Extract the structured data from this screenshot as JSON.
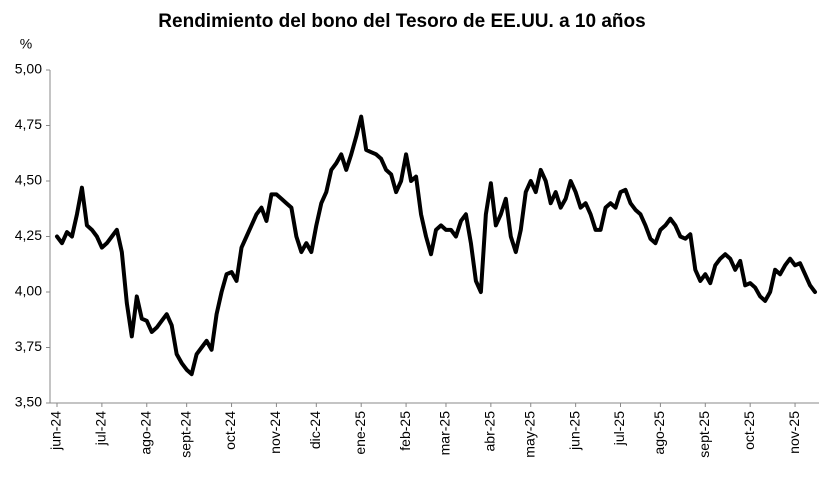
{
  "chart_data": {
    "type": "line",
    "title": "Rendimiento del bono del Tesoro de EE.UU. a 10 años",
    "y_label": "%",
    "color": "#000000",
    "ylim": [
      3.5,
      5.0
    ],
    "yticks": [
      {
        "value": 3.5,
        "label": "3,50"
      },
      {
        "value": 3.75,
        "label": "3,75"
      },
      {
        "value": 4.0,
        "label": "4,00"
      },
      {
        "value": 4.25,
        "label": "4,25"
      },
      {
        "value": 4.5,
        "label": "4,50"
      },
      {
        "value": 4.75,
        "label": "4,75"
      },
      {
        "value": 5.0,
        "label": "5,00"
      }
    ],
    "grid": false,
    "categories": [
      "jun-24",
      null,
      null,
      null,
      null,
      null,
      null,
      null,
      null,
      "jul-24",
      null,
      null,
      null,
      null,
      null,
      null,
      null,
      null,
      "ago-24",
      null,
      null,
      null,
      null,
      null,
      null,
      null,
      "sept-24",
      null,
      null,
      null,
      null,
      null,
      null,
      null,
      null,
      "oct-24",
      null,
      null,
      null,
      null,
      null,
      null,
      null,
      null,
      "nov-24",
      null,
      null,
      null,
      null,
      null,
      null,
      null,
      "dic-24",
      null,
      null,
      null,
      null,
      null,
      null,
      null,
      null,
      "ene-25",
      null,
      null,
      null,
      null,
      null,
      null,
      null,
      null,
      "feb-25",
      null,
      null,
      null,
      null,
      null,
      null,
      null,
      "mar-25",
      null,
      null,
      null,
      null,
      null,
      null,
      null,
      null,
      "abr-25",
      null,
      null,
      null,
      null,
      null,
      null,
      null,
      "may-25",
      null,
      null,
      null,
      null,
      null,
      null,
      null,
      null,
      "jun-25",
      null,
      null,
      null,
      null,
      null,
      null,
      null,
      null,
      "jul-25",
      null,
      null,
      null,
      null,
      null,
      null,
      null,
      "ago-25",
      null,
      null,
      null,
      null,
      null,
      null,
      null,
      null,
      "sept-25",
      null,
      null,
      null,
      null,
      null,
      null,
      null,
      null,
      "oct-25",
      null,
      null,
      null,
      null,
      null,
      null,
      null,
      null,
      "nov-25",
      null,
      null,
      null,
      null
    ],
    "values": [
      4.25,
      4.22,
      4.27,
      4.25,
      4.35,
      4.47,
      4.3,
      4.28,
      4.25,
      4.2,
      4.22,
      4.25,
      4.28,
      4.18,
      3.95,
      3.8,
      3.98,
      3.88,
      3.87,
      3.82,
      3.84,
      3.87,
      3.9,
      3.85,
      3.72,
      3.68,
      3.65,
      3.63,
      3.72,
      3.75,
      3.78,
      3.74,
      3.9,
      4.0,
      4.08,
      4.09,
      4.05,
      4.2,
      4.25,
      4.3,
      4.35,
      4.38,
      4.32,
      4.44,
      4.44,
      4.42,
      4.4,
      4.38,
      4.25,
      4.18,
      4.22,
      4.18,
      4.3,
      4.4,
      4.45,
      4.55,
      4.58,
      4.62,
      4.55,
      4.62,
      4.7,
      4.79,
      4.64,
      4.63,
      4.62,
      4.6,
      4.55,
      4.53,
      4.45,
      4.5,
      4.62,
      4.5,
      4.52,
      4.35,
      4.25,
      4.17,
      4.28,
      4.3,
      4.28,
      4.28,
      4.25,
      4.32,
      4.35,
      4.22,
      4.05,
      4.0,
      4.35,
      4.49,
      4.3,
      4.35,
      4.42,
      4.25,
      4.18,
      4.28,
      4.45,
      4.5,
      4.45,
      4.55,
      4.5,
      4.4,
      4.45,
      4.38,
      4.42,
      4.5,
      4.45,
      4.38,
      4.4,
      4.35,
      4.28,
      4.28,
      4.38,
      4.4,
      4.38,
      4.45,
      4.46,
      4.4,
      4.37,
      4.35,
      4.3,
      4.24,
      4.22,
      4.28,
      4.3,
      4.33,
      4.3,
      4.25,
      4.24,
      4.26,
      4.1,
      4.05,
      4.08,
      4.04,
      4.12,
      4.15,
      4.17,
      4.15,
      4.1,
      4.14,
      4.03,
      4.04,
      4.02,
      3.98,
      3.96,
      4.0,
      4.1,
      4.08,
      4.12,
      4.15,
      4.12,
      4.13,
      4.08,
      4.03,
      4.0
    ]
  }
}
